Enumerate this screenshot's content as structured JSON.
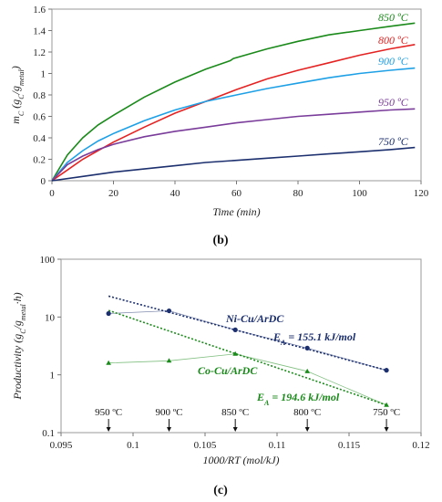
{
  "chart_data": [
    {
      "type": "line",
      "panel_label": "(b)",
      "xlabel": "Time (min)",
      "ylabel_main": "m",
      "ylabel_sub1": "C",
      "ylabel_mid": " (g",
      "ylabel_sub2": "C",
      "ylabel_mid2": "/g",
      "ylabel_sub3": "metal",
      "ylabel_end": ")",
      "xlim": [
        0,
        120
      ],
      "ylim": [
        0,
        1.6
      ],
      "xticks": [
        0,
        20,
        40,
        60,
        80,
        100,
        120
      ],
      "yticks": [
        0,
        0.2,
        0.4,
        0.6,
        0.8,
        1,
        1.2,
        1.4,
        1.6
      ],
      "ytick_labels": [
        "0",
        "0.2",
        "0.4",
        "0.6",
        "0.8",
        "1",
        "1.2",
        "1.4",
        "1.6"
      ],
      "grid": false,
      "series": [
        {
          "name": "850 ºC",
          "color": "#1a8a1a",
          "x": [
            0,
            5,
            10,
            15,
            20,
            30,
            40,
            50,
            57,
            58,
            59,
            70,
            80,
            90,
            100,
            110,
            118
          ],
          "y": [
            0,
            0.24,
            0.4,
            0.52,
            0.61,
            0.78,
            0.92,
            1.04,
            1.11,
            1.12,
            1.14,
            1.23,
            1.3,
            1.36,
            1.4,
            1.44,
            1.47
          ]
        },
        {
          "name": "800 ºC",
          "color": "#e52222",
          "x": [
            0,
            5,
            10,
            15,
            20,
            30,
            40,
            50,
            60,
            70,
            80,
            90,
            100,
            110,
            118
          ],
          "y": [
            0,
            0.1,
            0.2,
            0.28,
            0.36,
            0.5,
            0.63,
            0.74,
            0.85,
            0.95,
            1.03,
            1.1,
            1.17,
            1.23,
            1.27
          ]
        },
        {
          "name": "900 ºC",
          "color": "#1ea0e6",
          "x": [
            0,
            5,
            10,
            15,
            20,
            30,
            40,
            50,
            60,
            70,
            80,
            90,
            100,
            110,
            118
          ],
          "y": [
            0,
            0.17,
            0.28,
            0.37,
            0.44,
            0.56,
            0.66,
            0.74,
            0.8,
            0.86,
            0.91,
            0.96,
            1.0,
            1.03,
            1.05
          ]
        },
        {
          "name": "950 ºC",
          "color": "#7a3c9a",
          "x": [
            0,
            5,
            10,
            15,
            20,
            30,
            40,
            50,
            60,
            70,
            80,
            90,
            100,
            110,
            118
          ],
          "y": [
            0,
            0.15,
            0.23,
            0.29,
            0.34,
            0.41,
            0.46,
            0.5,
            0.54,
            0.57,
            0.6,
            0.62,
            0.64,
            0.66,
            0.67
          ]
        },
        {
          "name": "750 ºC",
          "color": "#1c2f6e",
          "x": [
            0,
            10,
            20,
            30,
            40,
            50,
            60,
            70,
            80,
            90,
            100,
            110,
            118
          ],
          "y": [
            0,
            0.04,
            0.08,
            0.11,
            0.14,
            0.17,
            0.19,
            0.21,
            0.23,
            0.25,
            0.27,
            0.29,
            0.31
          ]
        }
      ]
    },
    {
      "type": "scatter",
      "panel_label": "(c)",
      "xlabel": "1000/RT (mol/kJ)",
      "ylabel_main": "Productivity (g",
      "ylabel_sub1": "C",
      "ylabel_mid": "/g",
      "ylabel_sub2": "metal",
      "ylabel_end": "·h)",
      "xlim": [
        0.095,
        0.12
      ],
      "ylim_log": [
        0.1,
        100
      ],
      "log_y": true,
      "xticks": [
        0.095,
        0.1,
        0.105,
        0.11,
        0.115,
        0.12
      ],
      "xtick_labels": [
        "0.095",
        "0.1",
        "0.105",
        "0.11",
        "0.115",
        "0.12"
      ],
      "yticks": [
        0.1,
        1,
        10,
        100
      ],
      "ytick_labels": [
        "0.1",
        "1",
        "10",
        "100"
      ],
      "grid": false,
      "series": [
        {
          "name": "Ni-Cu/ArDC",
          "color": "#1c2f6e",
          "x": [
            0.0983,
            0.1025,
            0.1071,
            0.1121,
            0.1176
          ],
          "y": [
            11.5,
            12.8,
            6.0,
            2.9,
            1.2
          ],
          "fit": {
            "x": [
              0.0983,
              0.1176
            ],
            "y": [
              23,
              1.2
            ],
            "label": "E",
            "label_sub": "A",
            "label_value": " = 155.1 kJ/mol"
          }
        },
        {
          "name": "Co-Cu/ArDC",
          "color": "#1a8a1a",
          "x": [
            0.0983,
            0.1025,
            0.1071,
            0.1121,
            0.1176
          ],
          "y": [
            1.6,
            1.75,
            2.3,
            1.15,
            0.3
          ],
          "fit": {
            "x": [
              0.0983,
              0.1176
            ],
            "y": [
              13,
              0.3
            ],
            "label": "E",
            "label_sub": "A",
            "label_value": " = 194.6 kJ/mol"
          }
        }
      ],
      "temperature_markers": [
        {
          "label": "950 ºC",
          "x": 0.0983
        },
        {
          "label": "900 ºC",
          "x": 0.1025
        },
        {
          "label": "850 ºC",
          "x": 0.1071
        },
        {
          "label": "800 ºC",
          "x": 0.1121
        },
        {
          "label": "750 ºC",
          "x": 0.1176
        }
      ]
    }
  ]
}
